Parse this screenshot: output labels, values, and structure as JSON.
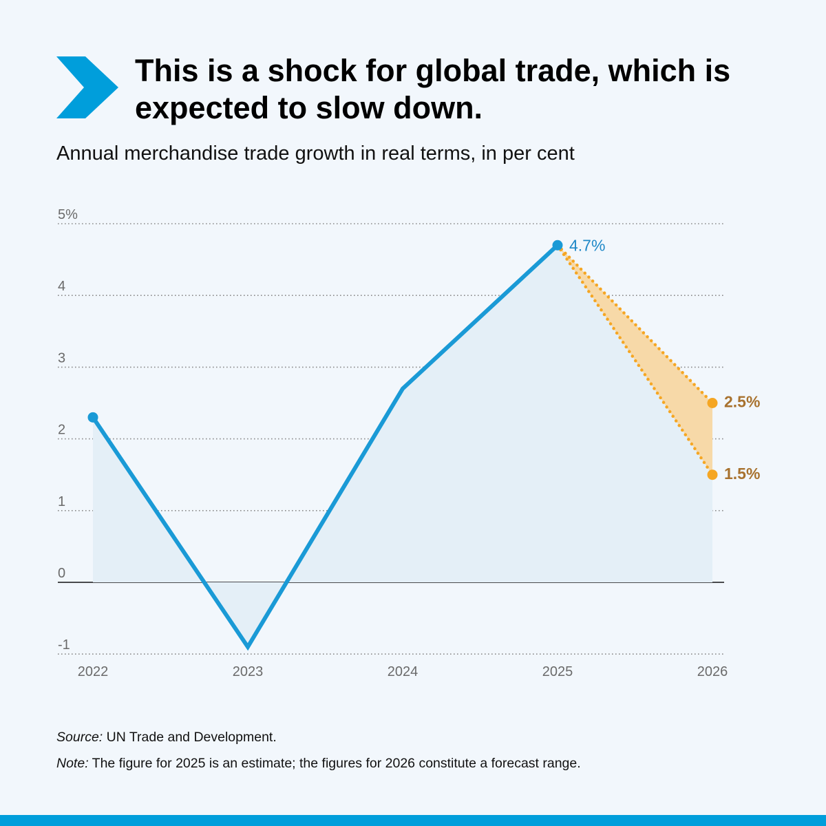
{
  "header": {
    "title": "This is a shock for global trade, which is expected to slow down.",
    "subtitle": "Annual merchandise trade growth in real terms, in per cent"
  },
  "colors": {
    "accent": "#009edb",
    "line": "#1a9ad6",
    "area": "#e4eff7",
    "forecast": "#f5a623",
    "forecast_fill": "#f7d9a8",
    "forecast_label": "#a8722f",
    "background": "#f2f7fc"
  },
  "icons": {
    "header": "chevron-right-icon"
  },
  "chart_data": {
    "type": "line",
    "x": [
      "2022",
      "2023",
      "2024",
      "2025",
      "2026"
    ],
    "series": [
      {
        "values": [
          2.3,
          -0.9,
          2.7,
          4.7,
          null
        ]
      },
      {
        "values": [
          null,
          null,
          null,
          4.7,
          2.5
        ]
      },
      {
        "values": [
          null,
          null,
          null,
          4.7,
          1.5
        ]
      }
    ],
    "ylim": [
      -1,
      5
    ],
    "yticks": [
      "-1",
      "0",
      "1",
      "2",
      "3",
      "4",
      "5%"
    ],
    "grid": true,
    "annotations": [
      {
        "x": "2025",
        "y": 4.7,
        "text": "4.7%"
      },
      {
        "x": "2026",
        "y": 2.5,
        "text": "2.5%"
      },
      {
        "x": "2026",
        "y": 1.5,
        "text": "1.5%"
      }
    ]
  },
  "footer": {
    "source_label": "Source:",
    "source_text": " UN Trade and Development.",
    "note_label": "Note:",
    "note_text": " The figure for 2025 is an estimate; the figures for 2026 constitute a forecast range."
  }
}
